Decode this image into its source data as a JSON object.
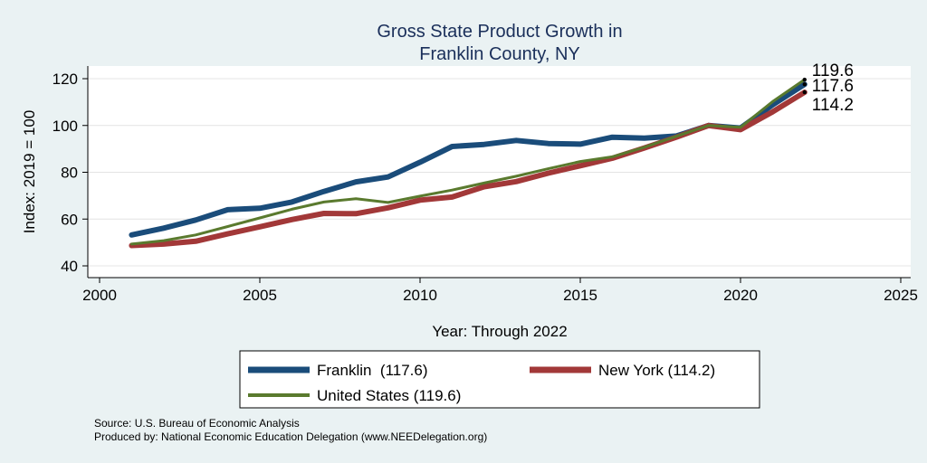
{
  "chart_data": {
    "type": "line",
    "title": [
      "Gross State Product Growth in",
      "Franklin County, NY"
    ],
    "xlabel": "Year: Through 2022",
    "ylabel": "Index: 2019 = 100",
    "xlim": [
      2000,
      2025
    ],
    "ylim": [
      40,
      120
    ],
    "xticks": [
      "2000",
      "2005",
      "2010",
      "2015",
      "2020",
      "2025"
    ],
    "yticks": [
      "40",
      "60",
      "80",
      "100",
      "120"
    ],
    "grid": true,
    "legend_position": "bottom",
    "x": [
      2001,
      2002,
      2003,
      2004,
      2005,
      2006,
      2007,
      2008,
      2009,
      2010,
      2011,
      2012,
      2013,
      2014,
      2015,
      2016,
      2017,
      2018,
      2019,
      2020,
      2021,
      2022
    ],
    "series": [
      {
        "name": "Franklin",
        "legend_label": "Franklin  (117.6)",
        "end_label": "117.6",
        "color": "#1a4c7a",
        "values": [
          53.2,
          56.1,
          59.6,
          64.0,
          64.6,
          67.3,
          71.8,
          75.9,
          78.0,
          84.3,
          91.0,
          91.9,
          93.6,
          92.3,
          92.0,
          95.0,
          94.6,
          95.5,
          100.0,
          98.9,
          108.8,
          117.6
        ]
      },
      {
        "name": "New York",
        "legend_label": "New York (114.2)",
        "end_label": "114.2",
        "color": "#a23838",
        "values": [
          48.7,
          49.3,
          50.5,
          53.7,
          56.7,
          59.8,
          62.4,
          62.3,
          64.8,
          68.1,
          69.4,
          73.8,
          76.0,
          79.6,
          82.8,
          86.0,
          90.4,
          95.0,
          100.0,
          98.2,
          105.8,
          114.2
        ]
      },
      {
        "name": "United States",
        "legend_label": "United States (119.6)",
        "end_label": "119.6",
        "color": "#5a7a2e",
        "values": [
          49.3,
          50.8,
          53.2,
          56.8,
          60.5,
          64.2,
          67.3,
          68.7,
          67.1,
          69.8,
          72.4,
          75.4,
          78.3,
          81.5,
          84.6,
          86.6,
          90.7,
          95.4,
          100.0,
          99.2,
          110.2,
          119.6
        ]
      }
    ]
  },
  "notes": {
    "source": "Source: U.S. Bureau of Economic Analysis",
    "produced": "Produced by: National Economic Education Delegation (www.NEEDelegation.org)"
  }
}
